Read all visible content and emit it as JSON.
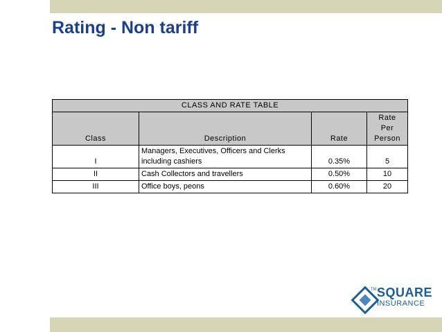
{
  "slide": {
    "title": "Rating - Non tariff"
  },
  "table": {
    "caption": "CLASS AND RATE TABLE",
    "headers": {
      "class": "Class",
      "description": "Description",
      "rate": "Rate",
      "rate_per_person_line1": "Rate",
      "rate_per_person_line2": "Per Person"
    },
    "rows": [
      {
        "class": "I",
        "description_line1": "Managers, Executives, Officers and Clerks",
        "description_line2": "including cashiers",
        "rate": "0.35%",
        "per_person": "5"
      },
      {
        "class": "II",
        "description_line1": "Cash Collectors and travellers",
        "description_line2": "",
        "rate": "0.50%",
        "per_person": "10"
      },
      {
        "class": "III",
        "description_line1": "Office boys, peons",
        "description_line2": "",
        "rate": "0.60%",
        "per_person": "20"
      }
    ]
  },
  "logo": {
    "name_big": "SQUARE",
    "name_small": "INSURANCE",
    "mark": "TM",
    "color": "#1b5e9a"
  },
  "theme": {
    "title_color": "#1b3f8a",
    "band_color": "#d6d6b7",
    "header_fill": "#c8c8c8"
  }
}
